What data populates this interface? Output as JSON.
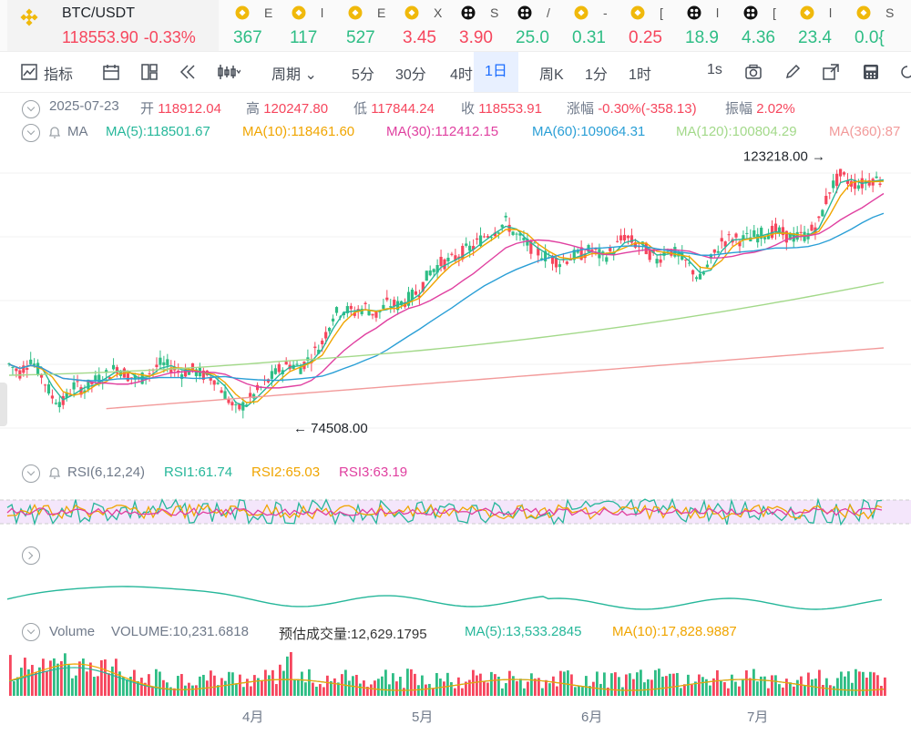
{
  "pair": {
    "symbol": "BTC/USDT",
    "price": "118553.90",
    "change": "-0.33%"
  },
  "ticker_items": [
    {
      "icon": "binance-icon",
      "name": "E",
      "value": "367",
      "color": "#2ebd85"
    },
    {
      "icon": "binance-icon",
      "name": "l",
      "value": "117",
      "color": "#2ebd85"
    },
    {
      "icon": "binance-icon",
      "name": "E",
      "value": "527",
      "color": "#2ebd85"
    },
    {
      "icon": "binance-icon",
      "name": "X",
      "value": "3.45",
      "color": "#f6465d"
    },
    {
      "icon": "token-icon",
      "name": "S",
      "value": "3.90",
      "color": "#f6465d"
    },
    {
      "icon": "token-icon",
      "name": "/",
      "value": "25.0",
      "color": "#2ebd85"
    },
    {
      "icon": "binance-icon",
      "name": "-",
      "value": "0.31",
      "color": "#2ebd85"
    },
    {
      "icon": "binance-icon",
      "name": "[",
      "value": "0.25",
      "color": "#f6465d"
    },
    {
      "icon": "token-icon",
      "name": "l",
      "value": "18.9",
      "color": "#2ebd85"
    },
    {
      "icon": "token-icon",
      "name": "[",
      "value": "4.36",
      "color": "#2ebd85"
    },
    {
      "icon": "binance-icon",
      "name": "l",
      "value": "23.4",
      "color": "#2ebd85"
    },
    {
      "icon": "binance-icon",
      "name": "S",
      "value": "0.0{",
      "color": "#2ebd85"
    }
  ],
  "toolbar": {
    "indicators": "指标",
    "period": "周期",
    "tf": [
      "5分",
      "30分",
      "4时",
      "1日",
      "周K",
      "1分",
      "1时"
    ],
    "selected": "1日",
    "interval": "1s"
  },
  "info": {
    "date": "2025-07-23",
    "open_label": "开",
    "open": "118912.04",
    "high_label": "高",
    "high": "120247.80",
    "low_label": "低",
    "low": "117844.24",
    "close_label": "收",
    "close": "118553.91",
    "chg_label": "涨幅",
    "chg": "-0.30%(-358.13)",
    "amp_label": "振幅",
    "amp": "2.02%"
  },
  "ma": {
    "label": "MA",
    "items": [
      {
        "text": "MA(5):118501.67",
        "color": "#26b79a"
      },
      {
        "text": "MA(10):118461.60",
        "color": "#f0a500"
      },
      {
        "text": "MA(30):112412.15",
        "color": "#e040a0"
      },
      {
        "text": "MA(60):109064.31",
        "color": "#2a9fd6"
      },
      {
        "text": "MA(120):100804.29",
        "color": "#a3d98a"
      },
      {
        "text": "MA(360):87",
        "color": "#f29a9a"
      }
    ]
  },
  "annotations": {
    "high": "123218.00",
    "low": "74508.00"
  },
  "rsi": {
    "label": "RSI(6,12,24)",
    "items": [
      {
        "text": "RSI1:61.74",
        "color": "#26b79a"
      },
      {
        "text": "RSI2:65.03",
        "color": "#f0a500"
      },
      {
        "text": "RSI3:63.19",
        "color": "#e040a0"
      }
    ]
  },
  "volume": {
    "label": "Volume",
    "volume": "VOLUME:10,231.6818",
    "est": "预估成交量:12,629.1795",
    "ma5": "MA(5):13,533.2845",
    "ma10": "MA(10):17,828.9887"
  },
  "xaxis": [
    "4月",
    "5月",
    "6月",
    "7月"
  ],
  "colors": {
    "up": "#2ebd85",
    "down": "#f6465d",
    "accent": "#1a6cff"
  },
  "chart_data": {
    "type": "candlestick",
    "ylim": [
      70000,
      125000
    ],
    "close_series": [
      85000,
      83500,
      86000,
      83000,
      79000,
      78000,
      81000,
      80500,
      82000,
      83000,
      84500,
      83000,
      82000,
      83500,
      85000,
      84500,
      83500,
      84000,
      83000,
      82500,
      79500,
      76500,
      78000,
      80000,
      82000,
      84000,
      85000,
      84500,
      86500,
      89000,
      94000,
      95000,
      94500,
      95500,
      94000,
      96000,
      95800,
      97000,
      98500,
      102000,
      103500,
      104000,
      105500,
      106500,
      108500,
      109500,
      111000,
      108500,
      107000,
      105500,
      104500,
      103800,
      104600,
      105200,
      106000,
      104500,
      106000,
      108500,
      107000,
      106000,
      104000,
      106300,
      104800,
      103000,
      100500,
      104000,
      107500,
      108000,
      107800,
      108400,
      109000,
      109500,
      108500,
      108200,
      108800,
      111000,
      117000,
      119500,
      118200,
      118000,
      119000,
      118500
    ],
    "high_label": "123218.00",
    "low_label": "74508.00"
  }
}
